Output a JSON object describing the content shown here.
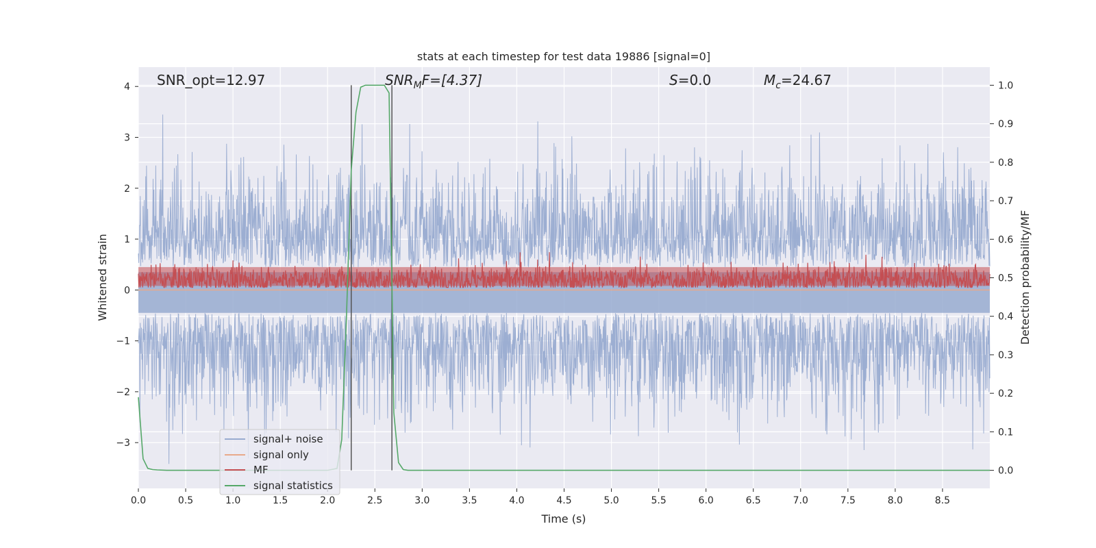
{
  "chart_data": {
    "type": "line",
    "title": "stats at each timestep for test data 19886 [signal=0]",
    "xlabel": "Time (s)",
    "ylabel_left": "Whitened strain",
    "ylabel_right": "Detection probability/MF",
    "xlim": [
      0.0,
      9.0
    ],
    "ylim_left": [
      -3.9,
      4.38
    ],
    "ylim_right": [
      -0.047,
      1.047
    ],
    "xticks": [
      "0.0",
      "0.5",
      "1.0",
      "1.5",
      "2.0",
      "2.5",
      "3.0",
      "3.5",
      "4.0",
      "4.5",
      "5.0",
      "5.5",
      "6.0",
      "6.5",
      "7.0",
      "7.5",
      "8.0",
      "8.5"
    ],
    "xtick_values": [
      0.0,
      0.5,
      1.0,
      1.5,
      2.0,
      2.5,
      3.0,
      3.5,
      4.0,
      4.5,
      5.0,
      5.5,
      6.0,
      6.5,
      7.0,
      7.5,
      8.0,
      8.5
    ],
    "yticks_left": [
      "−3",
      "−2",
      "−1",
      "0",
      "1",
      "2",
      "3",
      "4"
    ],
    "ytick_values_left": [
      -3,
      -2,
      -1,
      0,
      1,
      2,
      3,
      4
    ],
    "yticks_right": [
      "0.0",
      "0.1",
      "0.2",
      "0.3",
      "0.4",
      "0.5",
      "0.6",
      "0.7",
      "0.8",
      "0.9",
      "1.0"
    ],
    "ytick_values_right": [
      0.0,
      0.1,
      0.2,
      0.3,
      0.4,
      0.5,
      0.6,
      0.7,
      0.8,
      0.9,
      1.0
    ],
    "annotations": {
      "snr_opt": "SNR_opt=12.97",
      "snr_mf_main": "SNR",
      "snr_mf_sub": "M",
      "snr_mf_rest": "F=[4.37]",
      "s_main": "S",
      "s_rest": "=0.0",
      "mc_main": "M",
      "mc_sub": "c",
      "mc_rest": "=24.67"
    },
    "vlines": [
      2.25,
      2.68
    ],
    "legend": {
      "position": "lower-left",
      "entries": [
        "signal+ noise",
        "signal only",
        "MF",
        "signal statistics"
      ]
    },
    "colors": {
      "signal_noise": "#98abd0",
      "signal_only": "#e8a98a",
      "mf": "#c44e52",
      "signal_statistics": "#55a868",
      "vline": "#555555",
      "plot_bg": "#eaeaf2",
      "grid": "#ffffff"
    },
    "series": [
      {
        "name": "signal+ noise",
        "axis": "left",
        "amplitude_envelope": [
          -2.9,
          2.9
        ]
      },
      {
        "name": "signal only",
        "axis": "left",
        "values": [
          0.0
        ]
      },
      {
        "name": "MF",
        "axis": "left",
        "baseline": 0.2,
        "range": [
          0.05,
          1.0
        ]
      },
      {
        "name": "signal statistics",
        "axis": "right",
        "x": [
          0.0,
          0.05,
          0.1,
          0.15,
          0.2,
          0.3,
          0.5,
          1.0,
          1.5,
          2.0,
          2.1,
          2.15,
          2.2,
          2.25,
          2.3,
          2.35,
          2.4,
          2.45,
          2.5,
          2.55,
          2.6,
          2.65,
          2.68,
          2.7,
          2.75,
          2.8,
          2.85,
          3.0,
          4.0,
          5.0,
          6.0,
          7.0,
          8.0,
          9.0
        ],
        "values": [
          0.19,
          0.03,
          0.005,
          0.002,
          0.001,
          0.0,
          0.0,
          0.0,
          0.0,
          0.0,
          0.005,
          0.08,
          0.4,
          0.78,
          0.93,
          0.995,
          1.0,
          1.0,
          1.0,
          1.0,
          1.0,
          0.98,
          0.5,
          0.15,
          0.02,
          0.002,
          0.0,
          0.0,
          0.0,
          0.0,
          0.0,
          0.0,
          0.0,
          0.0
        ]
      }
    ]
  }
}
